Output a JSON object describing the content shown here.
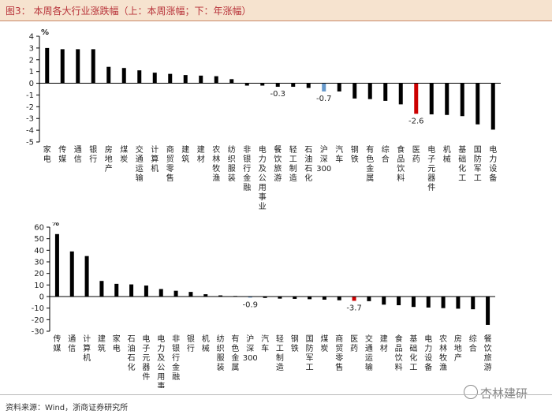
{
  "figure": {
    "title": "图3： 本周各大行业涨跌幅（上：本周涨幅；下：年涨幅）",
    "source": "资料来源：Wind，浙商证券研究所",
    "watermark": "杏林建研"
  },
  "colors": {
    "bar_default": "#000000",
    "bar_index": "#6699cc",
    "bar_highlight": "#cc0000",
    "axis": "#000000",
    "title_bar_bg": "#f6e3cf",
    "title_text": "#b8333a"
  },
  "chart_data": [
    {
      "type": "bar",
      "ylabel": "%",
      "ylim": [
        -5,
        4
      ],
      "yticks": [
        4,
        3,
        2,
        1,
        0,
        -1,
        -2,
        -3,
        -4,
        -5
      ],
      "categories": [
        "家电",
        "传媒",
        "通信",
        "银行",
        "房地产",
        "煤炭",
        "交通运输",
        "计算机",
        "商贸零售",
        "建筑",
        "建材",
        "农林牧渔",
        "纺织服装",
        "非银行金融",
        "电力及公用事业",
        "餐饮旅游",
        "轻工制造",
        "石油石化",
        "沪深300",
        "汽车",
        "钢铁",
        "有色金属",
        "综合",
        "食品饮料",
        "医药",
        "电子元器件",
        "机械",
        "基础化工",
        "国防军工",
        "电力设备"
      ],
      "values": [
        3.0,
        2.9,
        2.9,
        2.9,
        1.4,
        1.3,
        1.1,
        0.9,
        0.8,
        0.7,
        0.65,
        0.6,
        0.35,
        -0.2,
        -0.2,
        -0.3,
        -0.3,
        -0.4,
        -0.7,
        -0.7,
        -1.3,
        -1.35,
        -1.5,
        -1.8,
        -2.6,
        -2.65,
        -2.7,
        -2.8,
        -3.5,
        -3.95
      ],
      "highlight": {
        "沪深300": "index",
        "医药": "highlight"
      },
      "data_labels": [
        {
          "category": "餐饮旅游",
          "text": "-0.3"
        },
        {
          "category": "沪深300",
          "text": "-0.7"
        },
        {
          "category": "医药",
          "text": "-2.6"
        }
      ]
    },
    {
      "type": "bar",
      "ylabel": "%",
      "ylim": [
        -30,
        60
      ],
      "yticks": [
        60,
        50,
        40,
        30,
        20,
        10,
        0,
        -10,
        -20,
        -30
      ],
      "categories": [
        "传媒",
        "通信",
        "计算机",
        "建筑",
        "家电",
        "石油石化",
        "电子元器件",
        "电力及公用事业",
        "非银行金融",
        "银行",
        "机械",
        "纺织服装",
        "有色金属",
        "沪深300",
        "汽车",
        "轻工制造",
        "钢铁",
        "国防军工",
        "煤炭",
        "商贸零售",
        "医药",
        "交通运输",
        "建材",
        "食品饮料",
        "基础化工",
        "电力设备",
        "农林牧渔",
        "房地产",
        "综合",
        "餐饮旅游"
      ],
      "values": [
        54,
        39,
        35,
        13.5,
        11,
        10.5,
        9.5,
        6.5,
        5,
        4,
        2,
        1,
        0.5,
        -0.9,
        -1.2,
        -1.8,
        -2,
        -2.3,
        -2.7,
        -3.2,
        -3.7,
        -4,
        -7,
        -7.5,
        -9,
        -9.5,
        -10,
        -10.5,
        -11,
        -24.5
      ],
      "highlight": {
        "沪深300": "index",
        "医药": "highlight"
      },
      "data_labels": [
        {
          "category": "沪深300",
          "text": "-0.9"
        },
        {
          "category": "医药",
          "text": "-3.7"
        }
      ]
    }
  ]
}
